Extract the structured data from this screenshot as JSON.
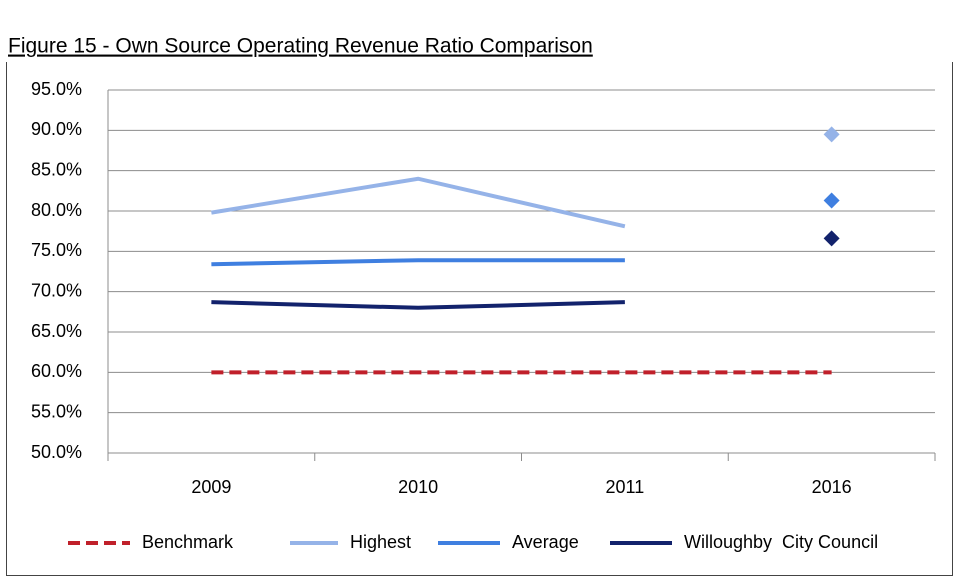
{
  "chart_data": {
    "type": "line",
    "title": "Figure 15 - Own Source Operating Revenue Ratio Comparison",
    "categories": [
      "2009",
      "2010",
      "2011",
      "2016"
    ],
    "series": [
      {
        "name": "Benchmark",
        "color": "#c0202a",
        "dashed": true,
        "values": [
          60,
          60,
          60,
          60
        ]
      },
      {
        "name": "Highest",
        "color": "#95b3e8",
        "values": [
          79.8,
          84.0,
          78.1,
          null
        ]
      },
      {
        "name": "Average",
        "color": "#3f7fe0",
        "values": [
          73.4,
          73.9,
          73.9,
          null
        ]
      },
      {
        "name": "Willoughby  City Council",
        "color": "#12226c",
        "values": [
          68.7,
          68.0,
          68.7,
          null
        ]
      },
      {
        "color": "#95b3e8",
        "marker": "diamond",
        "values": [
          null,
          null,
          null,
          89.5
        ]
      },
      {
        "color": "#3f7fe0",
        "marker": "diamond",
        "values": [
          null,
          null,
          null,
          81.3
        ]
      },
      {
        "color": "#12226c",
        "marker": "diamond",
        "values": [
          null,
          null,
          null,
          76.6
        ]
      }
    ],
    "ylim": [
      50,
      95
    ],
    "yticks": [
      {
        "value": 50,
        "label": "50.0%"
      },
      {
        "value": 55,
        "label": "55.0%"
      },
      {
        "value": 60,
        "label": "60.0%"
      },
      {
        "value": 65,
        "label": "65.0%"
      },
      {
        "value": 70,
        "label": "70.0%"
      },
      {
        "value": 75,
        "label": "75.0%"
      },
      {
        "value": 80,
        "label": "80.0%"
      },
      {
        "value": 85,
        "label": "85.0%"
      },
      {
        "value": 90,
        "label": "90.0%"
      },
      {
        "value": 95,
        "label": "95.0%"
      }
    ],
    "grid": true,
    "legend": "bottom"
  }
}
